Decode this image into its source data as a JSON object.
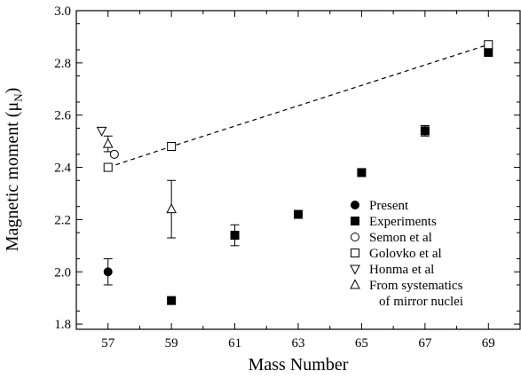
{
  "chart_data": {
    "type": "scatter",
    "xlabel": "Mass Number",
    "ylabel_main": "Magnetic moment (μ",
    "ylabel_sub": "N",
    "ylabel_end": ")",
    "xlim": [
      56.0,
      70.0
    ],
    "ylim": [
      1.78,
      3.0
    ],
    "x_ticks": [
      57,
      59,
      61,
      63,
      65,
      67,
      69
    ],
    "x_minor_ticks": [
      56,
      58,
      60,
      62,
      64,
      66,
      68,
      70
    ],
    "y_ticks": [
      1.8,
      2.0,
      2.2,
      2.4,
      2.6,
      2.8,
      3.0
    ],
    "y_tick_labels": [
      "1.8",
      "2.0",
      "2.2",
      "2.4",
      "2.6",
      "2.8",
      "3.0"
    ],
    "grid": false,
    "legend_position": "bottom-right",
    "series": [
      {
        "name": "Present",
        "marker": "filled-circle",
        "points": [
          {
            "x": 57,
            "y": 2.0,
            "err": 0.05
          }
        ]
      },
      {
        "name": "Experiments",
        "marker": "filled-square",
        "points": [
          {
            "x": 59,
            "y": 1.89
          },
          {
            "x": 61,
            "y": 2.14,
            "err": 0.04
          },
          {
            "x": 63,
            "y": 2.22
          },
          {
            "x": 65,
            "y": 2.38
          },
          {
            "x": 67,
            "y": 2.54,
            "err": 0.02
          },
          {
            "x": 69,
            "y": 2.84
          }
        ]
      },
      {
        "name": "Semon et al",
        "marker": "open-circle",
        "points": [
          {
            "x": 57.2,
            "y": 2.45
          }
        ]
      },
      {
        "name": "Golovko et al",
        "marker": "open-square",
        "points": [
          {
            "x": 57,
            "y": 2.4
          },
          {
            "x": 59,
            "y": 2.48
          },
          {
            "x": 69,
            "y": 2.87
          }
        ]
      },
      {
        "name": "Honma et al",
        "marker": "open-triangle-down",
        "points": [
          {
            "x": 56.8,
            "y": 2.54
          }
        ]
      },
      {
        "name": "From systematics",
        "name_line2": "of mirror nuclei",
        "marker": "open-triangle-up",
        "points": [
          {
            "x": 57,
            "y": 2.49,
            "err": 0.03
          },
          {
            "x": 59,
            "y": 2.24,
            "err": 0.11
          }
        ]
      }
    ],
    "dashed_line": [
      {
        "x": 57,
        "y": 2.4
      },
      {
        "x": 59,
        "y": 2.48
      },
      {
        "x": 69,
        "y": 2.87
      }
    ]
  }
}
